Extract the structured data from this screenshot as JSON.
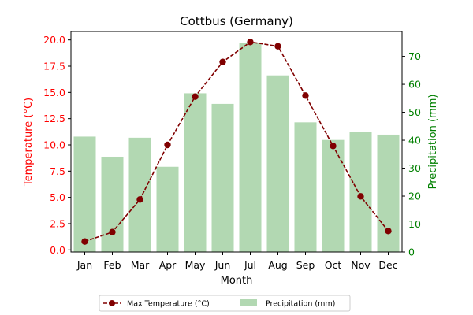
{
  "chart_data": {
    "type": "bar",
    "title": "Cottbus (Germany)",
    "xlabel": "Month",
    "ylabel": "Temperature (°C)",
    "y2label": "Precipitation (mm)",
    "categories": [
      "Jan",
      "Feb",
      "Mar",
      "Apr",
      "May",
      "Jun",
      "Jul",
      "Aug",
      "Sep",
      "Oct",
      "Nov",
      "Dec"
    ],
    "ylim": [
      -0.2,
      20.8
    ],
    "y2lim": [
      0,
      78.9
    ],
    "yticks": [
      "0.0",
      "2.5",
      "5.0",
      "7.5",
      "10.0",
      "12.5",
      "15.0",
      "17.5",
      "20.0"
    ],
    "y2ticks": [
      "0",
      "10",
      "20",
      "30",
      "40",
      "50",
      "60",
      "70"
    ],
    "series": [
      {
        "name": "Max Temperature (°C)",
        "kind": "line",
        "axis": "left",
        "color": "#800000",
        "values": [
          0.8,
          1.7,
          4.8,
          10.0,
          14.6,
          17.9,
          19.8,
          19.4,
          14.7,
          9.9,
          5.1,
          1.8
        ]
      },
      {
        "name": "Precipitation (mm)",
        "kind": "bar",
        "axis": "right",
        "color": "#b2d8b2",
        "values": [
          41.3,
          34.1,
          40.9,
          30.5,
          56.8,
          53.0,
          74.9,
          63.2,
          46.4,
          40.1,
          42.9,
          42.0
        ]
      }
    ],
    "axis_colors": {
      "left": "#ff0000",
      "right": "#008000"
    },
    "grid": false,
    "legend_position": "bottom-center"
  }
}
